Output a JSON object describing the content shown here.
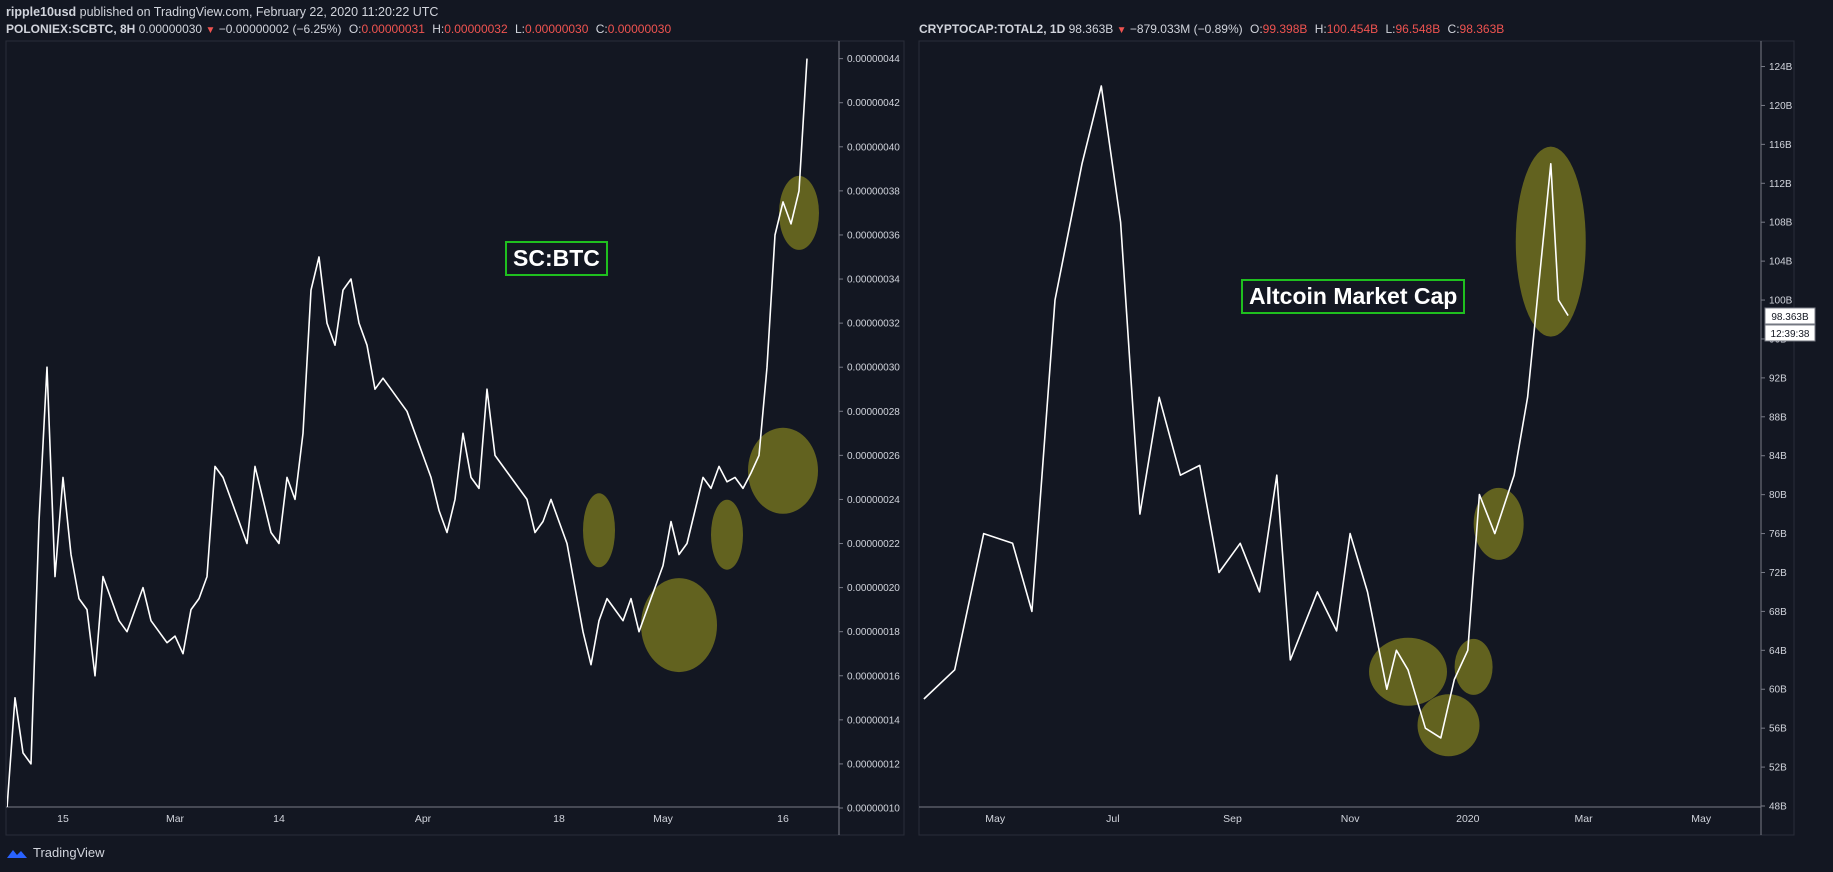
{
  "header": {
    "author": "ripple10usd",
    "published_text": "published on TradingView.com, February 22, 2020 11:20:22 UTC"
  },
  "left_legend": {
    "symbol": "POLONIEX:SCBTC, 8H",
    "last": "0.00000030",
    "change": "−0.00000002 (−6.25%)",
    "o_label": "O:",
    "o": "0.00000031",
    "h_label": "H:",
    "h": "0.00000032",
    "l_label": "L:",
    "l": "0.00000030",
    "c_label": "C:",
    "c": "0.00000030"
  },
  "right_legend": {
    "symbol": "CRYPTOCAP:TOTAL2, 1D",
    "last": "98.363B",
    "change": "−879.033M (−0.89%)",
    "o_label": "O:",
    "o": "99.398B",
    "h_label": "H:",
    "h": "100.454B",
    "l_label": "L:",
    "l": "96.548B",
    "c_label": "C:",
    "c": "98.363B"
  },
  "footer": {
    "brand": "TradingView"
  },
  "colors": {
    "background": "#131722",
    "line": "#ffffff",
    "highlight": "#6b6a1f",
    "box_border": "#1fbf1f",
    "down": "#ef5350"
  },
  "chart_data": [
    {
      "type": "line",
      "annotation": "SC:BTC",
      "x_ticks": [
        "15",
        "Mar",
        "14",
        "Apr",
        "18",
        "May",
        "16"
      ],
      "y_ticks": [
        "0.00000044",
        "0.00000042",
        "0.00000040",
        "0.00000038",
        "0.00000036",
        "0.00000034",
        "0.00000032",
        "0.00000030",
        "0.00000028",
        "0.00000026",
        "0.00000024",
        "0.00000022",
        "0.00000020",
        "0.00000018",
        "0.00000016",
        "0.00000014",
        "0.00000012",
        "0.00000010"
      ],
      "ylim": [
        1e-07,
        4.4e-07
      ],
      "x": [
        "2019-02-08",
        "2019-02-09",
        "2019-02-10",
        "2019-02-11",
        "2019-02-12",
        "2019-02-13",
        "2019-02-14",
        "2019-02-15",
        "2019-02-16",
        "2019-02-17",
        "2019-02-18",
        "2019-02-19",
        "2019-02-20",
        "2019-02-21",
        "2019-02-22",
        "2019-02-23",
        "2019-02-24",
        "2019-02-25",
        "2019-02-26",
        "2019-02-27",
        "2019-02-28",
        "2019-03-01",
        "2019-03-02",
        "2019-03-03",
        "2019-03-04",
        "2019-03-05",
        "2019-03-06",
        "2019-03-07",
        "2019-03-08",
        "2019-03-09",
        "2019-03-10",
        "2019-03-11",
        "2019-03-12",
        "2019-03-13",
        "2019-03-14",
        "2019-03-15",
        "2019-03-16",
        "2019-03-17",
        "2019-03-18",
        "2019-03-19",
        "2019-03-20",
        "2019-03-21",
        "2019-03-22",
        "2019-03-23",
        "2019-03-24",
        "2019-03-25",
        "2019-03-26",
        "2019-03-27",
        "2019-03-28",
        "2019-03-29",
        "2019-03-30",
        "2019-03-31",
        "2019-04-01",
        "2019-04-02",
        "2019-04-03",
        "2019-04-04",
        "2019-04-05",
        "2019-04-06",
        "2019-04-07",
        "2019-04-08",
        "2019-04-09",
        "2019-04-10",
        "2019-04-11",
        "2019-04-12",
        "2019-04-13",
        "2019-04-14",
        "2019-04-15",
        "2019-04-16",
        "2019-04-17",
        "2019-04-18",
        "2019-04-19",
        "2019-04-20",
        "2019-04-21",
        "2019-04-22",
        "2019-04-23",
        "2019-04-24",
        "2019-04-25",
        "2019-04-26",
        "2019-04-27",
        "2019-04-28",
        "2019-04-29",
        "2019-04-30",
        "2019-05-01",
        "2019-05-02",
        "2019-05-03",
        "2019-05-04",
        "2019-05-05",
        "2019-05-06",
        "2019-05-07",
        "2019-05-08",
        "2019-05-09",
        "2019-05-10",
        "2019-05-11",
        "2019-05-12",
        "2019-05-13",
        "2019-05-14",
        "2019-05-15",
        "2019-05-16",
        "2019-05-17",
        "2019-05-18",
        "2019-05-19"
      ],
      "values": [
        1e-07,
        1.5e-07,
        1.25e-07,
        1.2e-07,
        2.3e-07,
        3e-07,
        2.05e-07,
        2.5e-07,
        2.15e-07,
        1.95e-07,
        1.9e-07,
        1.6e-07,
        2.05e-07,
        1.95e-07,
        1.85e-07,
        1.8e-07,
        1.9e-07,
        2e-07,
        1.85e-07,
        1.8e-07,
        1.75e-07,
        1.78e-07,
        1.7e-07,
        1.9e-07,
        1.95e-07,
        2.05e-07,
        2.55e-07,
        2.5e-07,
        2.4e-07,
        2.3e-07,
        2.2e-07,
        2.55e-07,
        2.4e-07,
        2.25e-07,
        2.2e-07,
        2.5e-07,
        2.4e-07,
        2.7e-07,
        3.35e-07,
        3.5e-07,
        3.2e-07,
        3.1e-07,
        3.35e-07,
        3.4e-07,
        3.2e-07,
        3.1e-07,
        2.9e-07,
        2.95e-07,
        2.9e-07,
        2.85e-07,
        2.8e-07,
        2.7e-07,
        2.6e-07,
        2.5e-07,
        2.35e-07,
        2.25e-07,
        2.4e-07,
        2.7e-07,
        2.5e-07,
        2.45e-07,
        2.9e-07,
        2.6e-07,
        2.55e-07,
        2.5e-07,
        2.45e-07,
        2.4e-07,
        2.25e-07,
        2.3e-07,
        2.4e-07,
        2.3e-07,
        2.2e-07,
        2e-07,
        1.8e-07,
        1.65e-07,
        1.85e-07,
        1.95e-07,
        1.9e-07,
        1.85e-07,
        1.95e-07,
        1.8e-07,
        1.9e-07,
        2e-07,
        2.1e-07,
        2.3e-07,
        2.15e-07,
        2.2e-07,
        2.35e-07,
        2.5e-07,
        2.45e-07,
        2.55e-07,
        2.48e-07,
        2.5e-07,
        2.45e-07,
        2.52e-07,
        2.6e-07,
        3e-07,
        3.6e-07,
        3.75e-07,
        3.65e-07,
        3.8e-07,
        4.4e-07
      ],
      "highlights": [
        {
          "date": "2019-04-23",
          "value": 2.26e-07
        },
        {
          "date": "2019-05-03",
          "value": 1.83e-07
        },
        {
          "date": "2019-05-09",
          "value": 2.24e-07
        },
        {
          "date": "2019-05-16",
          "value": 2.53e-07
        },
        {
          "date": "2019-05-18",
          "value": 3.7e-07
        }
      ]
    },
    {
      "type": "line",
      "annotation": "Altcoin Market Cap",
      "x_ticks": [
        "May",
        "Jul",
        "Sep",
        "Nov",
        "2020",
        "Mar",
        "May"
      ],
      "y_ticks": [
        "124B",
        "120B",
        "116B",
        "112B",
        "108B",
        "104B",
        "100B",
        "96B",
        "92B",
        "88B",
        "84B",
        "80B",
        "76B",
        "72B",
        "68B",
        "64B",
        "60B",
        "56B",
        "52B",
        "48B"
      ],
      "ylim": [
        48,
        126
      ],
      "y_unit": "B",
      "last_price_label": "98.363B",
      "countdown_label": "12:39:38",
      "x": [
        "2019-03-25",
        "2019-04-10",
        "2019-04-25",
        "2019-05-10",
        "2019-05-20",
        "2019-06-01",
        "2019-06-15",
        "2019-06-25",
        "2019-07-05",
        "2019-07-15",
        "2019-07-25",
        "2019-08-05",
        "2019-08-15",
        "2019-08-25",
        "2019-09-05",
        "2019-09-15",
        "2019-09-24",
        "2019-10-01",
        "2019-10-15",
        "2019-10-25",
        "2019-11-01",
        "2019-11-10",
        "2019-11-20",
        "2019-11-25",
        "2019-12-01",
        "2019-12-10",
        "2019-12-18",
        "2019-12-25",
        "2020-01-01",
        "2020-01-07",
        "2020-01-15",
        "2020-01-25",
        "2020-02-01",
        "2020-02-08",
        "2020-02-13",
        "2020-02-17",
        "2020-02-22"
      ],
      "values": [
        59,
        62,
        76,
        75,
        68,
        100,
        114,
        122,
        108,
        78,
        90,
        82,
        83,
        72,
        75,
        70,
        82,
        63,
        70,
        66,
        76,
        70,
        60,
        64,
        62,
        56,
        55,
        61,
        64,
        80,
        76,
        82,
        90,
        104,
        114,
        100,
        98.4
      ],
      "highlights": [
        {
          "date": "2019-12-01",
          "value": 61.8
        },
        {
          "date": "2019-12-22",
          "value": 56.3
        },
        {
          "date": "2020-01-04",
          "value": 62.3
        },
        {
          "date": "2020-01-17",
          "value": 77
        },
        {
          "date": "2020-02-13",
          "value": 106
        }
      ]
    }
  ]
}
